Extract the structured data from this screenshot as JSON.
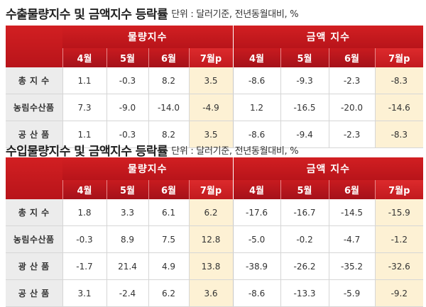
{
  "sections": [
    {
      "title": "수출물량지수 및 금액지수 등락률",
      "unit": "단위 : 달러기준, 전년동월대비, %",
      "group_volume": "물량지수",
      "group_value": "금액 지수",
      "months": [
        "4월",
        "5월",
        "6월",
        "7월p",
        "4월",
        "5월",
        "6월",
        "7월p"
      ],
      "rows": [
        {
          "label": "총 지 수",
          "values": [
            "1.1",
            "-0.3",
            "8.2",
            "3.5",
            "-8.6",
            "-9.3",
            "-2.3",
            "-8.3"
          ]
        },
        {
          "label": "농림수산품",
          "values": [
            "7.3",
            "-9.0",
            "-14.0",
            "-4.9",
            "1.2",
            "-16.5",
            "-20.0",
            "-14.6"
          ]
        },
        {
          "label": "공 산 품",
          "values": [
            "1.1",
            "-0.3",
            "8.2",
            "3.5",
            "-8.6",
            "-9.4",
            "-2.3",
            "-8.3"
          ]
        }
      ]
    },
    {
      "title": "수입물량지수 및 금액지수 등락률",
      "unit": "단위 : 달러기준, 전년동월대비, %",
      "group_volume": "물량지수",
      "group_value": "금액 지수",
      "months": [
        "4월",
        "5월",
        "6월",
        "7월p",
        "4월",
        "5월",
        "6월",
        "7월p"
      ],
      "rows": [
        {
          "label": "총 지 수",
          "values": [
            "1.8",
            "3.3",
            "6.1",
            "6.2",
            "-17.6",
            "-16.7",
            "-14.5",
            "-15.9"
          ]
        },
        {
          "label": "농림수산품",
          "values": [
            "-0.3",
            "8.9",
            "7.5",
            "12.8",
            "-5.0",
            "-0.2",
            "-4.7",
            "-1.2"
          ]
        },
        {
          "label": "광 산 품",
          "values": [
            "-1.7",
            "21.4",
            "4.9",
            "13.8",
            "-38.9",
            "-26.2",
            "-35.2",
            "-32.6"
          ]
        },
        {
          "label": "공 산 품",
          "values": [
            "3.1",
            "-2.4",
            "6.2",
            "3.6",
            "-8.6",
            "-13.3",
            "-5.9",
            "-9.2"
          ]
        }
      ]
    }
  ]
}
